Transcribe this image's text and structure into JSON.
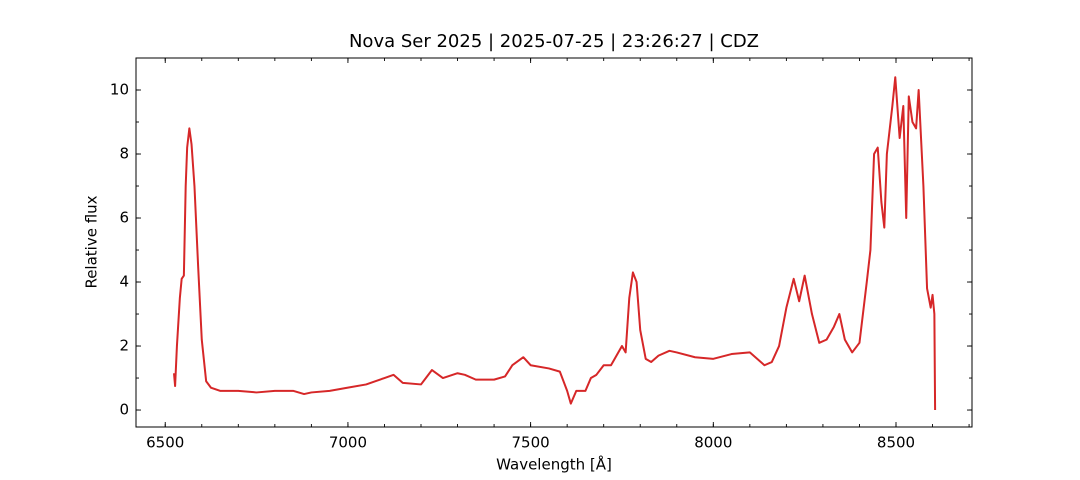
{
  "chart_data": {
    "type": "line",
    "title": "Nova Ser 2025 | 2025-07-25 | 23:26:27 | CDZ",
    "xlabel": "Wavelength [Å]",
    "ylabel": "Relative flux",
    "xlim": [
      6420,
      8708
    ],
    "ylim": [
      -0.53,
      11.0
    ],
    "xticks": [
      6500,
      7000,
      7500,
      8000,
      8500
    ],
    "yticks": [
      0,
      2,
      4,
      6,
      8,
      10
    ],
    "xminor_ticks": [
      6500,
      6600,
      6700,
      6800,
      6900,
      7000,
      7100,
      7200,
      7300,
      7400,
      7500,
      7600,
      7700,
      7800,
      7900,
      8000,
      8100,
      8200,
      8300,
      8400,
      8500,
      8600,
      8700
    ],
    "yminor_ticks": [
      0,
      1,
      2,
      3,
      4,
      5,
      6,
      7,
      8,
      9,
      10
    ],
    "grid": false,
    "x": [
      6524,
      6527,
      6532,
      6540,
      6545,
      6551,
      6556,
      6560,
      6566,
      6572,
      6580,
      6590,
      6600,
      6612,
      6625,
      6650,
      6700,
      6750,
      6800,
      6850,
      6880,
      6900,
      6950,
      7000,
      7050,
      7100,
      7125,
      7150,
      7200,
      7230,
      7260,
      7300,
      7320,
      7350,
      7400,
      7430,
      7450,
      7480,
      7500,
      7550,
      7580,
      7600,
      7610,
      7625,
      7650,
      7665,
      7680,
      7700,
      7720,
      7730,
      7750,
      7760,
      7770,
      7780,
      7790,
      7800,
      7815,
      7830,
      7850,
      7880,
      7900,
      7950,
      8000,
      8050,
      8100,
      8140,
      8160,
      8180,
      8200,
      8220,
      8235,
      8250,
      8270,
      8290,
      8310,
      8330,
      8345,
      8360,
      8380,
      8400,
      8420,
      8430,
      8440,
      8450,
      8460,
      8468,
      8475,
      8490,
      8498,
      8510,
      8520,
      8528,
      8535,
      8545,
      8555,
      8562,
      8575,
      8585,
      8595,
      8600,
      8605,
      8607
    ],
    "series": [
      {
        "name": "Nova Ser 2025",
        "color": "#d62728",
        "values": [
          1.15,
          0.75,
          2.0,
          3.5,
          4.1,
          4.2,
          7.0,
          8.2,
          8.8,
          8.3,
          7.0,
          4.5,
          2.2,
          0.9,
          0.7,
          0.6,
          0.6,
          0.55,
          0.6,
          0.6,
          0.5,
          0.55,
          0.6,
          0.7,
          0.8,
          1.0,
          1.1,
          0.85,
          0.8,
          1.25,
          1.0,
          1.15,
          1.1,
          0.95,
          0.95,
          1.05,
          1.4,
          1.65,
          1.4,
          1.3,
          1.2,
          0.6,
          0.2,
          0.6,
          0.6,
          1.0,
          1.1,
          1.4,
          1.4,
          1.6,
          2.0,
          1.8,
          3.5,
          4.3,
          4.0,
          2.5,
          1.6,
          1.5,
          1.7,
          1.85,
          1.8,
          1.65,
          1.6,
          1.75,
          1.8,
          1.4,
          1.5,
          2.0,
          3.2,
          4.1,
          3.4,
          4.2,
          3.0,
          2.1,
          2.2,
          2.6,
          3.0,
          2.2,
          1.8,
          2.1,
          4.0,
          5.0,
          8.0,
          8.2,
          6.5,
          5.7,
          8.0,
          9.5,
          10.4,
          8.5,
          9.5,
          6.0,
          9.8,
          9.0,
          8.8,
          10.0,
          7.0,
          3.8,
          3.2,
          3.6,
          3.0,
          0.0
        ]
      }
    ]
  }
}
